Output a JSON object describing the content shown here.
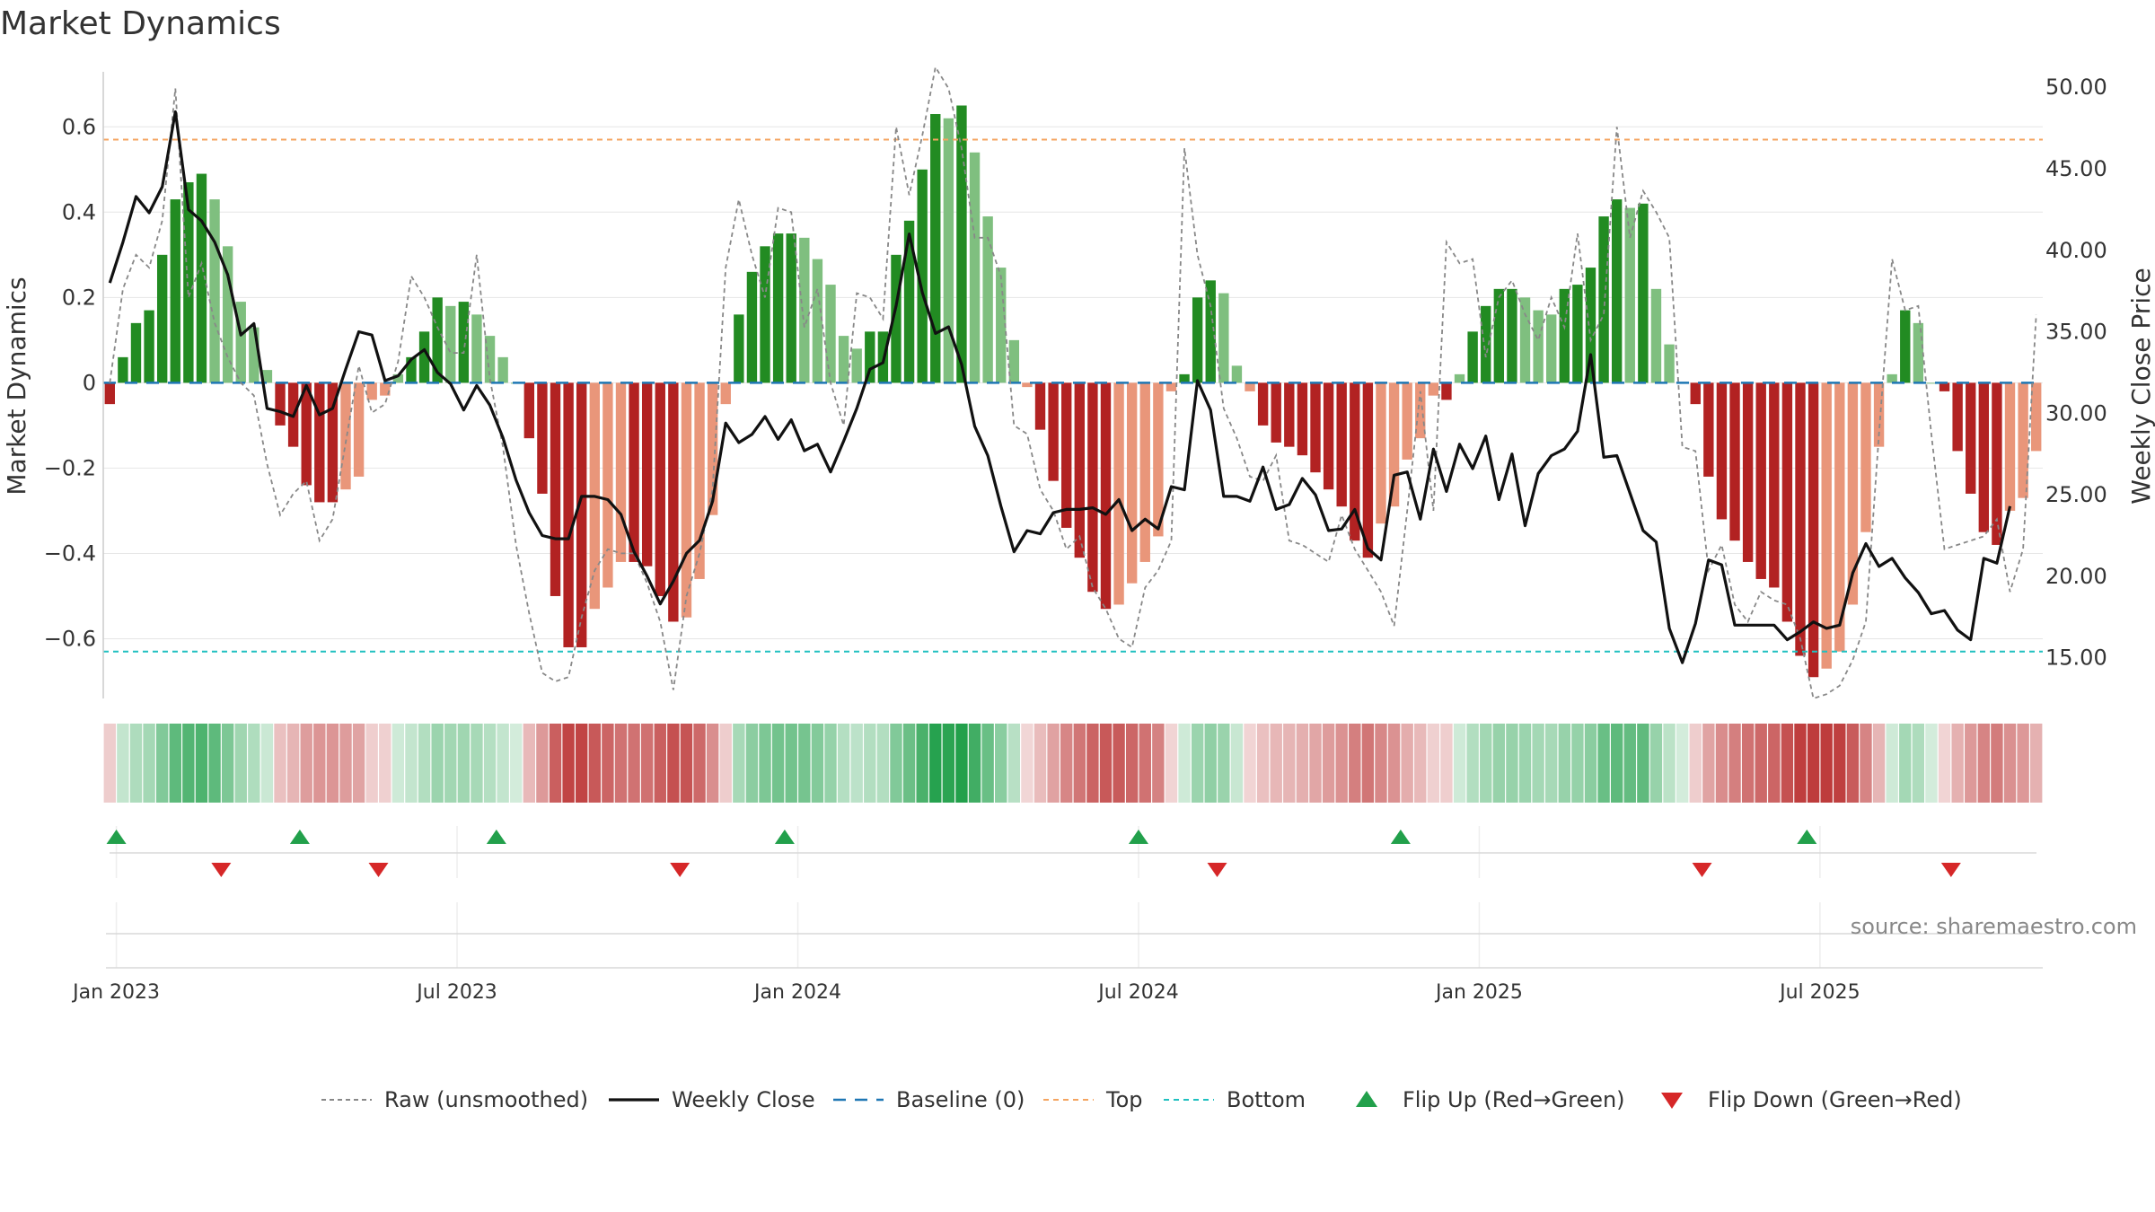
{
  "chart_data": {
    "type": "bar",
    "title": "Market Dynamics",
    "ylabel": "Market Dynamics",
    "y2label": "Weekly Close Price",
    "ylim": [
      -0.74,
      0.75
    ],
    "y2lim": [
      12.5,
      51.5
    ],
    "yticks": [
      -0.6,
      -0.4,
      -0.2,
      0,
      0.2,
      0.4,
      0.6
    ],
    "yticklabels": [
      "−0.6",
      "−0.4",
      "−0.2",
      "0",
      "0.2",
      "0.4",
      "0.6"
    ],
    "y2ticks": [
      15,
      20,
      25,
      30,
      35,
      40,
      45,
      50
    ],
    "y2ticklabels": [
      "15.00",
      "20.00",
      "25.00",
      "30.00",
      "35.00",
      "40.00",
      "45.00",
      "50.00"
    ],
    "x_start_week": "2022-12-26",
    "xticks": [
      {
        "week": 1,
        "label": "Jan 2023"
      },
      {
        "week": 27,
        "label": "Jul 2023"
      },
      {
        "week": 53,
        "label": "Jan 2024"
      },
      {
        "week": 79,
        "label": "Jul 2024"
      },
      {
        "week": 105,
        "label": "Jan 2025"
      },
      {
        "week": 131,
        "label": "Jul 2025"
      }
    ],
    "top_line": 0.57,
    "bottom_line": -0.63,
    "bar_values": [
      -0.05,
      0.06,
      0.14,
      0.17,
      0.3,
      0.43,
      0.47,
      0.49,
      0.43,
      0.32,
      0.19,
      0.13,
      0.03,
      -0.1,
      -0.15,
      -0.24,
      -0.28,
      -0.28,
      -0.25,
      -0.22,
      -0.04,
      -0.03,
      0.02,
      0.06,
      0.12,
      0.2,
      0.18,
      0.19,
      0.16,
      0.11,
      0.06,
      0.0,
      -0.13,
      -0.26,
      -0.5,
      -0.62,
      -0.62,
      -0.53,
      -0.48,
      -0.42,
      -0.42,
      -0.43,
      -0.5,
      -0.56,
      -0.55,
      -0.46,
      -0.31,
      -0.05,
      0.16,
      0.26,
      0.32,
      0.35,
      0.35,
      0.34,
      0.29,
      0.23,
      0.11,
      0.08,
      0.12,
      0.12,
      0.3,
      0.38,
      0.5,
      0.63,
      0.62,
      0.65,
      0.54,
      0.39,
      0.27,
      0.1,
      -0.01,
      -0.11,
      -0.23,
      -0.34,
      -0.41,
      -0.49,
      -0.53,
      -0.52,
      -0.47,
      -0.42,
      -0.36,
      -0.02,
      0.02,
      0.2,
      0.24,
      0.21,
      0.04,
      -0.02,
      -0.1,
      -0.14,
      -0.15,
      -0.17,
      -0.21,
      -0.25,
      -0.29,
      -0.37,
      -0.41,
      -0.33,
      -0.29,
      -0.18,
      -0.13,
      -0.03,
      -0.04,
      0.02,
      0.12,
      0.18,
      0.22,
      0.22,
      0.2,
      0.17,
      0.16,
      0.22,
      0.23,
      0.27,
      0.39,
      0.43,
      0.41,
      0.42,
      0.22,
      0.09,
      0.0,
      -0.05,
      -0.22,
      -0.32,
      -0.37,
      -0.42,
      -0.46,
      -0.48,
      -0.56,
      -0.64,
      -0.69,
      -0.67,
      -0.63,
      -0.52,
      -0.35,
      -0.15,
      0.02,
      0.17,
      0.14,
      0.0,
      -0.02,
      -0.16,
      -0.26,
      -0.35,
      -0.38,
      -0.3,
      -0.27,
      -0.16
    ],
    "close_values": [
      38.0,
      40.5,
      43.3,
      42.3,
      43.9,
      48.5,
      42.5,
      41.8,
      40.5,
      38.5,
      34.8,
      35.5,
      30.3,
      30.1,
      29.8,
      31.7,
      29.9,
      30.3,
      32.7,
      35.0,
      34.8,
      32.0,
      32.3,
      33.3,
      33.9,
      32.5,
      31.8,
      30.2,
      31.7,
      30.5,
      28.5,
      25.9,
      23.9,
      22.5,
      22.3,
      22.3,
      24.9,
      24.9,
      24.7,
      23.8,
      21.5,
      20.0,
      18.3,
      19.7,
      21.4,
      22.2,
      24.6,
      29.4,
      28.2,
      28.7,
      29.8,
      28.4,
      29.6,
      27.7,
      28.1,
      26.4,
      28.3,
      30.3,
      32.7,
      33.1,
      36.6,
      41.0,
      37.4,
      34.9,
      35.3,
      33.0,
      29.2,
      27.4,
      24.3,
      21.5,
      22.8,
      22.6,
      23.9,
      24.1,
      24.1,
      24.2,
      23.8,
      24.7,
      22.8,
      23.5,
      22.9,
      25.5,
      25.3,
      32.0,
      30.2,
      24.9,
      24.9,
      24.6,
      26.7,
      24.1,
      24.4,
      26.0,
      25.0,
      22.8,
      22.9,
      24.1,
      21.7,
      21.0,
      26.2,
      26.4,
      23.5,
      27.8,
      25.2,
      28.1,
      26.6,
      28.6,
      24.7,
      27.5,
      23.1,
      26.3,
      27.4,
      27.8,
      28.9,
      33.6,
      27.3,
      27.4,
      25.1,
      22.8,
      22.1,
      16.8,
      14.7,
      17.1,
      21.0,
      20.7,
      17.0,
      17.0,
      17.0,
      17.0,
      16.1,
      16.6,
      17.2,
      16.8,
      17.0,
      20.2,
      22.0,
      20.6,
      21.1,
      19.9,
      19.0,
      17.7,
      17.9,
      16.7,
      16.1,
      21.1,
      20.8,
      24.3
    ],
    "raw_values": [
      0.0,
      0.22,
      0.3,
      0.27,
      0.38,
      0.69,
      0.2,
      0.28,
      0.14,
      0.06,
      0.0,
      -0.03,
      -0.19,
      -0.31,
      -0.26,
      -0.23,
      -0.37,
      -0.32,
      -0.14,
      0.04,
      -0.07,
      -0.05,
      0.05,
      0.25,
      0.2,
      0.13,
      0.07,
      0.07,
      0.3,
      0.01,
      -0.15,
      -0.38,
      -0.54,
      -0.68,
      -0.7,
      -0.69,
      -0.55,
      -0.44,
      -0.39,
      -0.4,
      -0.4,
      -0.47,
      -0.56,
      -0.72,
      -0.5,
      -0.4,
      -0.25,
      0.27,
      0.43,
      0.3,
      0.2,
      0.41,
      0.4,
      0.13,
      0.22,
      0.0,
      -0.1,
      0.21,
      0.2,
      0.15,
      0.6,
      0.44,
      0.58,
      0.74,
      0.69,
      0.55,
      0.34,
      0.34,
      0.25,
      -0.1,
      -0.12,
      -0.25,
      -0.3,
      -0.39,
      -0.36,
      -0.48,
      -0.53,
      -0.6,
      -0.62,
      -0.48,
      -0.44,
      -0.37,
      0.55,
      0.3,
      0.18,
      -0.06,
      -0.13,
      -0.22,
      -0.23,
      -0.17,
      -0.37,
      -0.38,
      -0.4,
      -0.42,
      -0.31,
      -0.39,
      -0.44,
      -0.49,
      -0.57,
      -0.3,
      -0.02,
      -0.3,
      0.33,
      0.28,
      0.29,
      0.06,
      0.2,
      0.24,
      0.16,
      0.1,
      0.2,
      0.13,
      0.35,
      0.1,
      0.16,
      0.6,
      0.34,
      0.45,
      0.4,
      0.34,
      -0.15,
      -0.16,
      -0.44,
      -0.38,
      -0.52,
      -0.56,
      -0.49,
      -0.51,
      -0.52,
      -0.6,
      -0.74,
      -0.73,
      -0.71,
      -0.65,
      -0.56,
      -0.12,
      0.29,
      0.17,
      0.18,
      -0.12,
      -0.39,
      -0.38,
      -0.37,
      -0.36,
      -0.32,
      -0.49,
      -0.39,
      0.16
    ],
    "flip_up_weeks": [
      1,
      15,
      30,
      52,
      79,
      99,
      130
    ],
    "flip_down_weeks": [
      9,
      21,
      44,
      85,
      122,
      141
    ],
    "legend": [
      {
        "label": "Raw (unsmoothed)",
        "style": "dashed-gray"
      },
      {
        "label": "Weekly Close",
        "style": "solid-black"
      },
      {
        "label": "Baseline (0)",
        "style": "dashed-blue"
      },
      {
        "label": "Top",
        "style": "dashed-orange"
      },
      {
        "label": "Bottom",
        "style": "dashed-cyan"
      },
      {
        "label": "Flip Up (Red→Green)",
        "style": "triangle-up-green"
      },
      {
        "label": "Flip Down (Green→Red)",
        "style": "triangle-down-red"
      }
    ],
    "legend_position": "bottom-center",
    "grid": true
  },
  "source_text": "source: sharemaestro.com",
  "colors": {
    "strong_green": "#228B22",
    "light_green": "#7FBF7F",
    "strong_red": "#B22222",
    "light_red": "#E9967A",
    "close_line": "#111111",
    "raw_line": "#888888",
    "baseline": "#1F77B4",
    "top_line": "#F4A460",
    "bottom_line": "#20C0C0",
    "flip_up": "#22A04B",
    "flip_down": "#D62728"
  }
}
